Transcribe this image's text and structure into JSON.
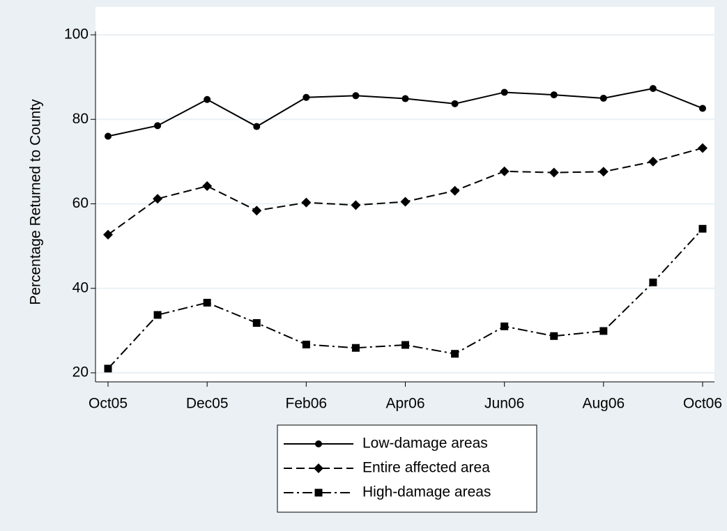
{
  "chart_data": {
    "type": "line",
    "y_label": "Percentage Returned to County",
    "categories": [
      "Oct05",
      null,
      "Dec05",
      null,
      "Feb06",
      null,
      "Apr06",
      null,
      "Jun06",
      null,
      "Aug06",
      null,
      "Oct06"
    ],
    "series": [
      {
        "name": "Low-damage areas",
        "color": "#000000",
        "line_style": "solid",
        "marker": "circle",
        "values": [
          76.0,
          78.5,
          84.7,
          78.3,
          85.2,
          85.6,
          84.9,
          83.7,
          86.4,
          85.8,
          85.0,
          87.3,
          82.6
        ]
      },
      {
        "name": "Entire affected area",
        "color": "#000000",
        "line_style": "dash",
        "marker": "diamond",
        "values": [
          52.7,
          61.2,
          64.2,
          58.4,
          60.3,
          59.7,
          60.5,
          63.1,
          67.7,
          67.4,
          67.6,
          70.0,
          73.2
        ]
      },
      {
        "name": "High-damage areas",
        "color": "#000000",
        "line_style": "dashdot",
        "marker": "square",
        "values": [
          21.0,
          33.7,
          36.6,
          31.8,
          26.7,
          25.9,
          26.6,
          24.5,
          31.0,
          28.7,
          29.9,
          41.4,
          54.1
        ]
      }
    ],
    "ylim": [
      20,
      100
    ],
    "yticks": [
      20,
      40,
      60,
      80,
      100
    ],
    "grid": true,
    "legend_position": "bottom"
  }
}
